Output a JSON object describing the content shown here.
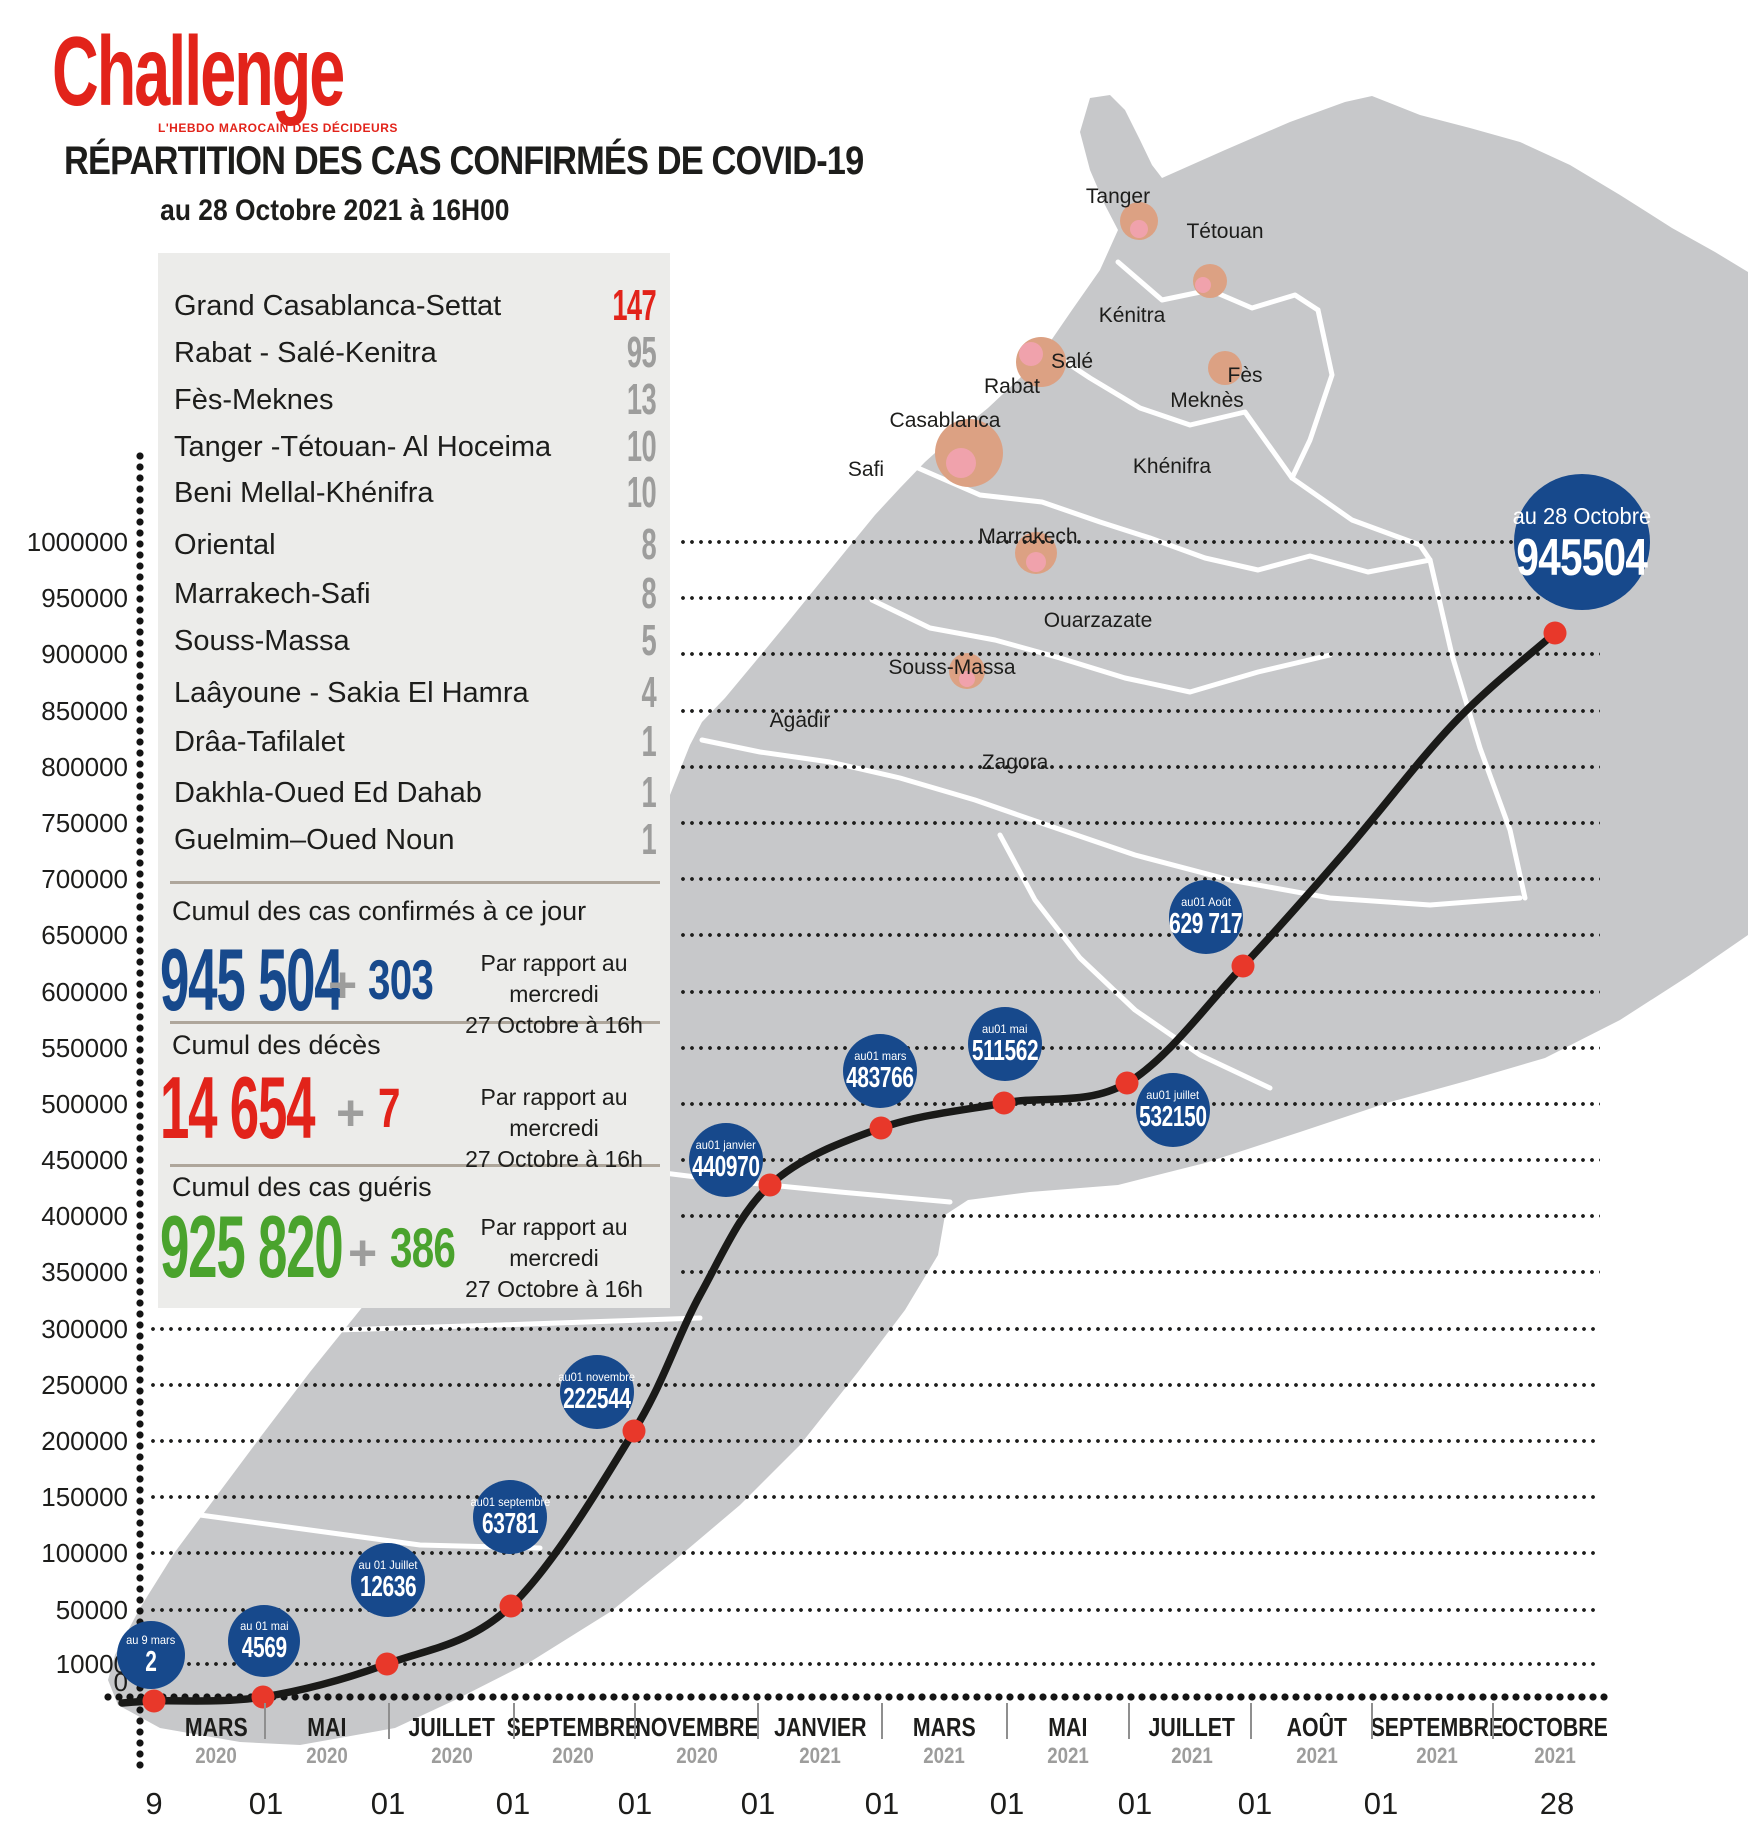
{
  "brand": {
    "logo": "Challenge",
    "tagline": "L'HEBDO MAROCAIN DES DÉCIDEURS"
  },
  "header": {
    "title": "RÉPARTITION DES CAS CONFIRMÉS DE COVID-19",
    "subtitle": "au 28 Octobre 2021 à 16H00"
  },
  "palette": {
    "accent_blue": "#17498c",
    "accent_red": "#e2231a",
    "accent_green": "#4aa32d",
    "muted_gray": "#9d9d9c",
    "map_gray": "#c7c8ca",
    "bubble_salmon": "#dca183",
    "bubble_pink": "#f2a2b0",
    "line_black": "#1a1a18",
    "point_red": "#e8382a"
  },
  "regions": {
    "items": [
      {
        "label": "Grand Casablanca-Settat",
        "value": "147",
        "accent": true
      },
      {
        "label": "Rabat - Salé-Kenitra",
        "value": "95"
      },
      {
        "label": "Fès-Meknes",
        "value": "13"
      },
      {
        "label": "Tanger -Tétouan- Al Hoceima",
        "value": "10"
      },
      {
        "label": "Beni Mellal-Khénifra",
        "value": "10"
      },
      {
        "label": "Oriental",
        "value": "8"
      },
      {
        "label": "Marrakech-Safi",
        "value": "8"
      },
      {
        "label": "Souss-Massa",
        "value": "5"
      },
      {
        "label": "Laâyoune - Sakia El Hamra",
        "value": "4"
      },
      {
        "label": "Drâa-Tafilalet",
        "value": "1"
      },
      {
        "label": "Dakhla-Oued Ed Dahab",
        "value": "1"
      },
      {
        "label": "Guelmim–Oued Noun",
        "value": "1"
      }
    ]
  },
  "stats": {
    "confirmed": {
      "title": "Cumul des cas confirmés à ce jour",
      "value": "945 504",
      "plus": "+",
      "delta": "303",
      "note1": "Par rapport au mercredi",
      "note2": "27 Octobre à 16h"
    },
    "deaths": {
      "title": "Cumul des décès",
      "value": "14 654",
      "plus": "+",
      "delta": "7",
      "note1": "Par rapport au mercredi",
      "note2": "27 Octobre à 16h"
    },
    "recovered": {
      "title": "Cumul des cas guéris",
      "value": "925 820",
      "plus": "+",
      "delta": "386",
      "note1": "Par rapport au mercredi",
      "note2": "27 Octobre à 16h"
    }
  },
  "map": {
    "cities": [
      {
        "label": "Tanger",
        "bubble": true
      },
      {
        "label": "Tétouan",
        "bubble": true
      },
      {
        "label": "Kénitra"
      },
      {
        "label": "Salé",
        "bubble": true
      },
      {
        "label": "Rabat"
      },
      {
        "label": "Fès",
        "bubble": true
      },
      {
        "label": "Meknès"
      },
      {
        "label": "Casablanca",
        "bubble": true
      },
      {
        "label": "Safi"
      },
      {
        "label": "Khénifra"
      },
      {
        "label": "Marrakech",
        "bubble": true
      },
      {
        "label": "Ouarzazate"
      },
      {
        "label": "Souss-Massa",
        "bubble": true
      },
      {
        "label": "Agadir"
      },
      {
        "label": "Zagora"
      }
    ]
  },
  "chart_data": {
    "type": "line",
    "title": "Répartition des cas confirmés de Covid-19 au 28 Octobre 2021 à 16H00",
    "xlabel": "",
    "ylabel": "",
    "ylim": [
      0,
      1000000
    ],
    "grid": "dotted-horizontal",
    "x_labels": [
      "9 mars 2020",
      "01 mai 2020",
      "01 juillet 2020",
      "01 septembre 2020",
      "01 novembre 2020",
      "01 janvier 2021",
      "01 mars 2021",
      "01 mai 2021",
      "01 juillet 2021",
      "01 août 2021",
      "28 octobre 2021"
    ],
    "values": [
      2,
      4569,
      12636,
      63781,
      222544,
      440970,
      483766,
      511562,
      532150,
      629717,
      945504
    ],
    "point_badges": [
      {
        "label": "au 9 mars",
        "value": "2"
      },
      {
        "label": "au 01 mai",
        "value": "4569"
      },
      {
        "label": "au 01 Juillet",
        "value": "12636"
      },
      {
        "label": "au01 septembre",
        "value": "63781"
      },
      {
        "label": "au01 novembre",
        "value": "222544"
      },
      {
        "label": "au01 janvier",
        "value": "440970"
      },
      {
        "label": "au01 mars",
        "value": "483766"
      },
      {
        "label": "au01 mai",
        "value": "511562"
      },
      {
        "label": "au01 juillet",
        "value": "532150"
      },
      {
        "label": "au01 Août",
        "value": "629 717"
      },
      {
        "label": "au 28 Octobre",
        "value": "945504",
        "big": true
      }
    ],
    "y_ticks": [
      "1000000",
      "950000",
      "900000",
      "850000",
      "800000",
      "750000",
      "700000",
      "650000",
      "600000",
      "550000",
      "500000",
      "450000",
      "400000",
      "350000",
      "300000",
      "250000",
      "200000",
      "150000",
      "100000",
      "50000",
      "10000",
      "0"
    ],
    "x_axis": [
      {
        "month": "MARS",
        "year": "2020",
        "day": "9"
      },
      {
        "month": "MAI",
        "year": "2020",
        "day": "01"
      },
      {
        "month": "JUILLET",
        "year": "2020",
        "day": "01"
      },
      {
        "month": "SEPTEMBRE",
        "year": "2020",
        "day": "01"
      },
      {
        "month": "NOVEMBRE",
        "year": "2020",
        "day": "01"
      },
      {
        "month": "JANVIER",
        "year": "2021",
        "day": "01"
      },
      {
        "month": "MARS",
        "year": "2021",
        "day": "01"
      },
      {
        "month": "MAI",
        "year": "2021",
        "day": "01"
      },
      {
        "month": "JUILLET",
        "year": "2021",
        "day": "01"
      },
      {
        "month": "AOÛT",
        "year": "2021",
        "day": "01"
      },
      {
        "month": "SEPTEMBRE",
        "year": "2021",
        "day": "01"
      },
      {
        "month": "OCTOBRE",
        "year": "2021",
        "day": "28"
      }
    ]
  }
}
